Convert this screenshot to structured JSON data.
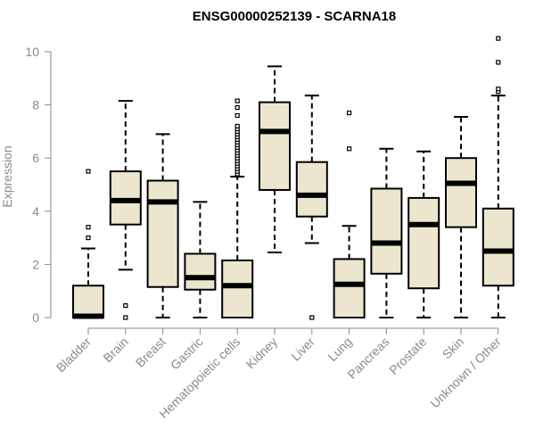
{
  "chart_data": {
    "type": "boxplot",
    "title": "ENSG00000252139 - SCARNA18",
    "xlabel": "",
    "ylabel": "Expression",
    "ylim": [
      0,
      10.5
    ],
    "yticks": [
      0,
      2,
      4,
      6,
      8,
      10
    ],
    "grid": false,
    "box_fill": "#ede6cf",
    "box_stroke": "#000000",
    "axis_color": "#8a8a8a",
    "categories": [
      "Bladder",
      "Brain",
      "Breast",
      "Gastric",
      "Hematopoietic cells",
      "Kidney",
      "Liver",
      "Lung",
      "Pancreas",
      "Prostate",
      "Skin",
      "Unknown / Other"
    ],
    "boxes": [
      {
        "name": "Bladder",
        "min": 0,
        "q1": 0,
        "median": 0.05,
        "q3": 1.2,
        "max": 2.6,
        "outliers": [
          3.0,
          3.4,
          5.5
        ]
      },
      {
        "name": "Brain",
        "min": 1.8,
        "q1": 3.5,
        "median": 4.4,
        "q3": 5.5,
        "max": 8.15,
        "outliers": [
          0.0,
          0.45
        ]
      },
      {
        "name": "Breast",
        "min": 0,
        "q1": 1.15,
        "median": 4.35,
        "q3": 5.15,
        "max": 6.9,
        "outliers": []
      },
      {
        "name": "Gastric",
        "min": 0,
        "q1": 1.05,
        "median": 1.5,
        "q3": 2.4,
        "max": 4.35,
        "outliers": []
      },
      {
        "name": "Hematopoietic cells",
        "min": 0,
        "q1": 0,
        "median": 1.2,
        "q3": 2.15,
        "max": 5.3,
        "outliers": [
          5.4,
          5.5,
          5.6,
          5.7,
          5.8,
          5.9,
          6.0,
          6.1,
          6.2,
          6.3,
          6.4,
          6.5,
          6.6,
          6.7,
          6.8,
          6.9,
          7.0,
          7.1,
          7.2,
          7.6,
          7.9,
          8.15
        ]
      },
      {
        "name": "Kidney",
        "min": 2.45,
        "q1": 4.8,
        "median": 7.0,
        "q3": 8.1,
        "max": 9.45,
        "outliers": []
      },
      {
        "name": "Liver",
        "min": 2.8,
        "q1": 3.8,
        "median": 4.6,
        "q3": 5.85,
        "max": 8.35,
        "outliers": [
          0.0
        ]
      },
      {
        "name": "Lung",
        "min": 0,
        "q1": 0,
        "median": 1.25,
        "q3": 2.2,
        "max": 3.45,
        "outliers": [
          6.35,
          7.7
        ]
      },
      {
        "name": "Pancreas",
        "min": 0,
        "q1": 1.65,
        "median": 2.8,
        "q3": 4.85,
        "max": 6.35,
        "outliers": []
      },
      {
        "name": "Prostate",
        "min": 0,
        "q1": 1.1,
        "median": 3.5,
        "q3": 4.5,
        "max": 6.25,
        "outliers": []
      },
      {
        "name": "Skin",
        "min": 0,
        "q1": 3.4,
        "median": 5.05,
        "q3": 6.0,
        "max": 7.55,
        "outliers": []
      },
      {
        "name": "Unknown / Other",
        "min": 0,
        "q1": 1.2,
        "median": 2.5,
        "q3": 4.1,
        "max": 8.35,
        "outliers": [
          8.5,
          8.6,
          9.6,
          10.5
        ]
      }
    ]
  }
}
